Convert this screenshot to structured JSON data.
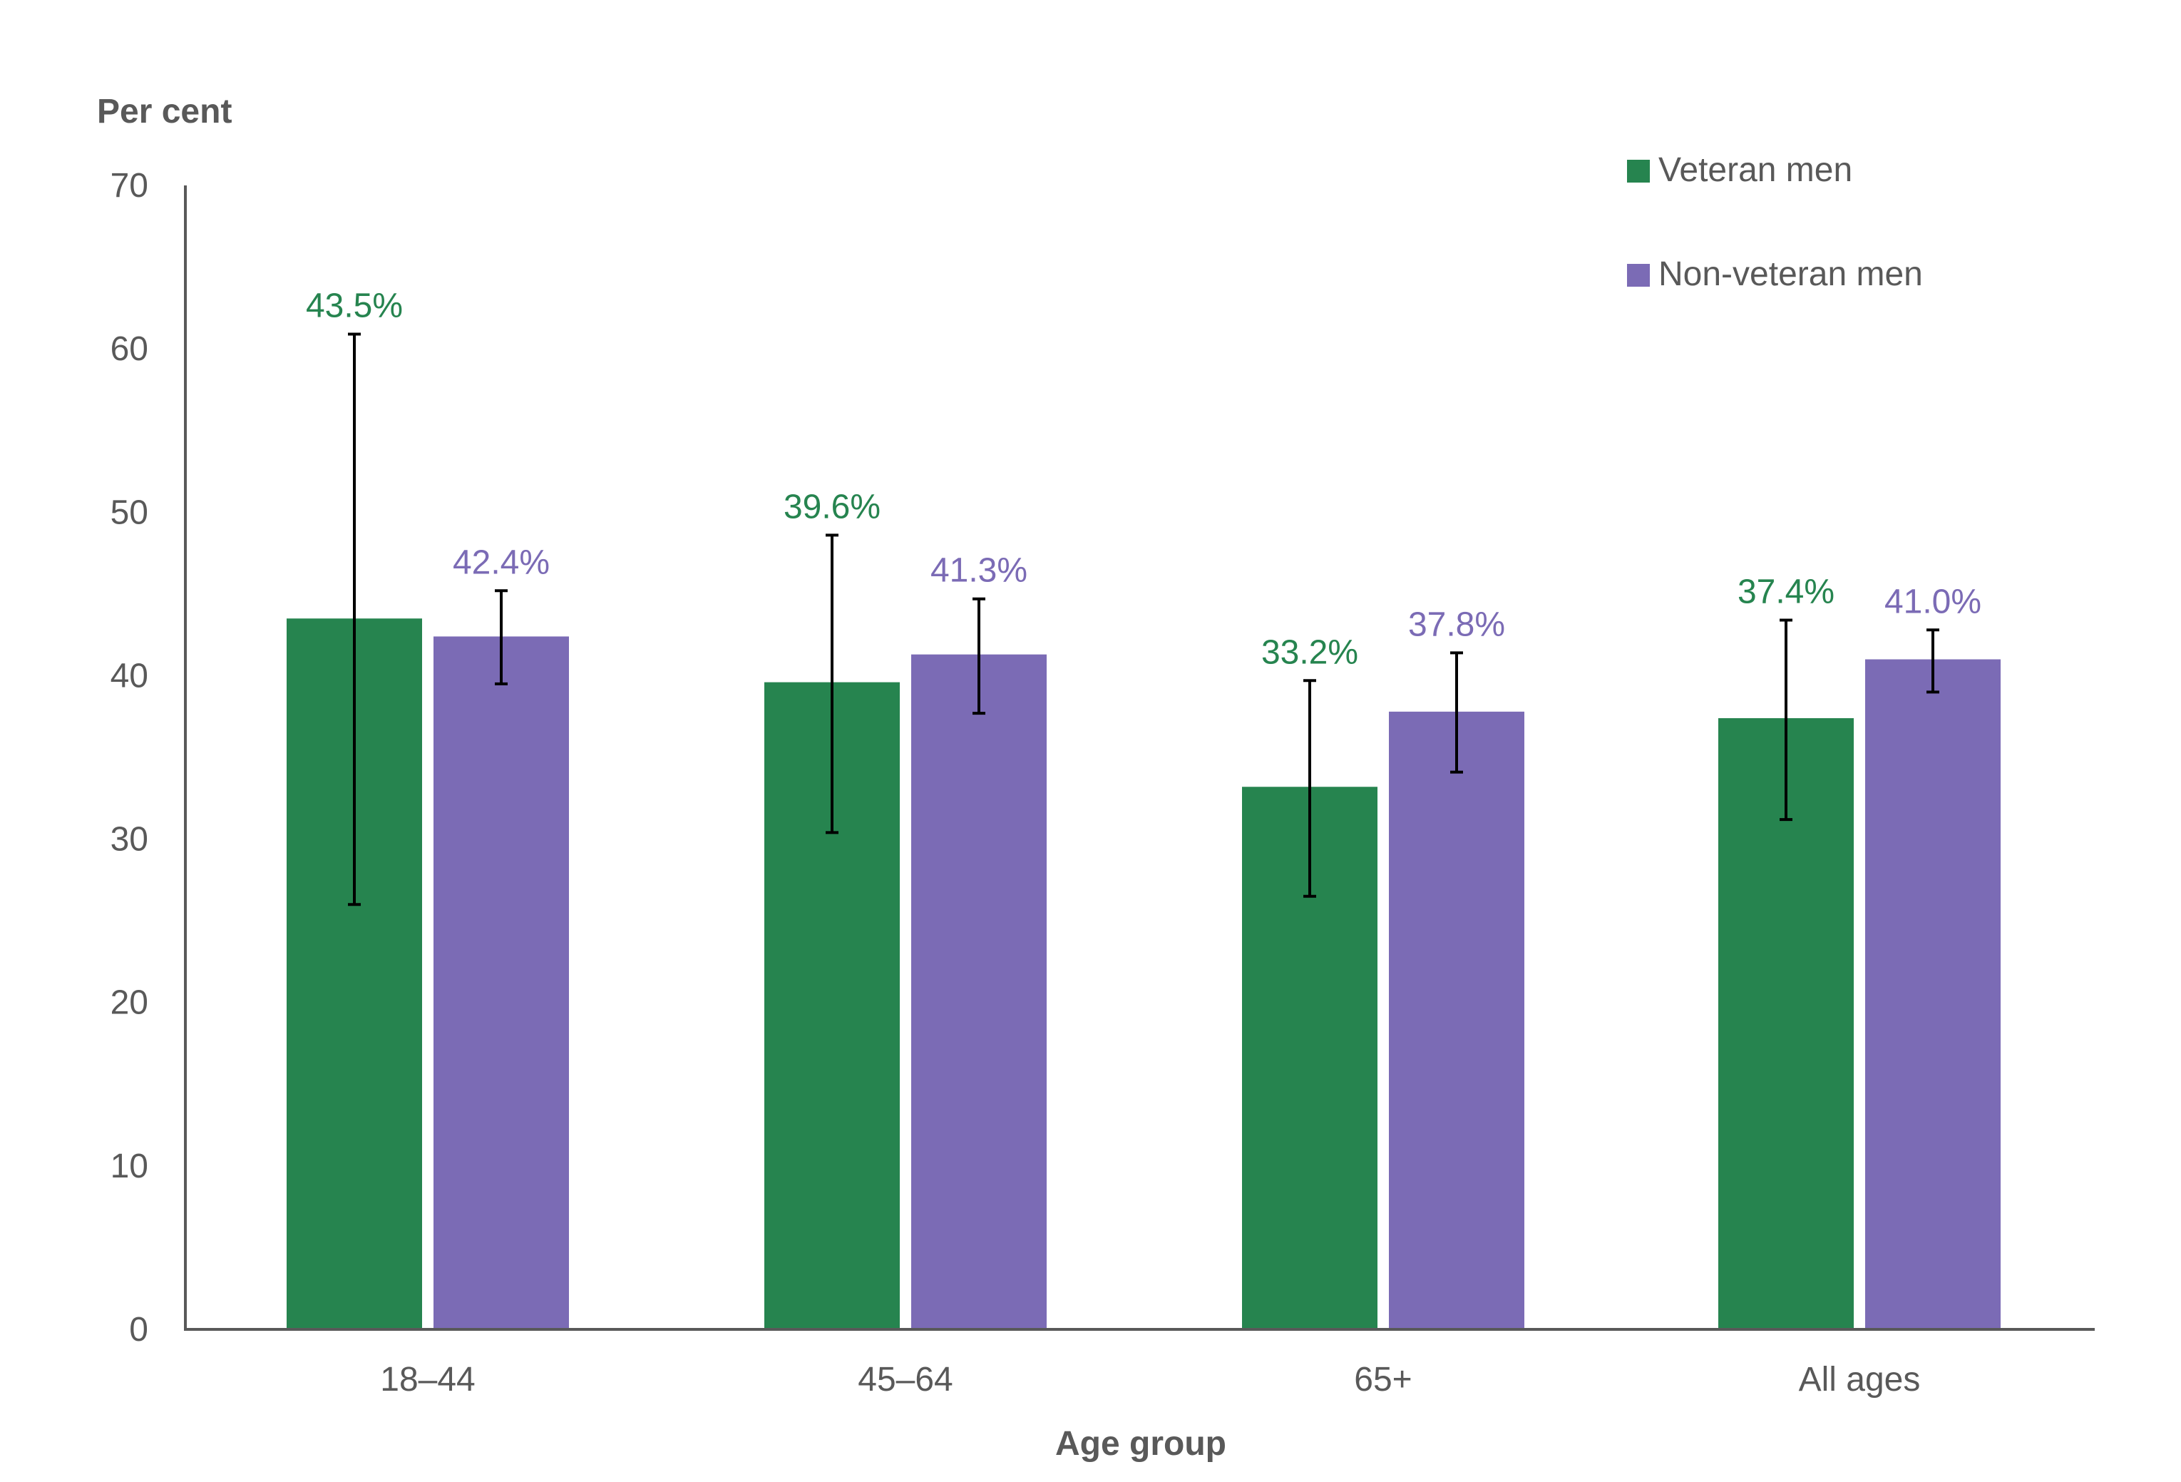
{
  "chart_data": {
    "type": "bar",
    "ylabel": "Per cent",
    "xlabel": "Age group",
    "ylim": [
      0,
      70
    ],
    "yticks": [
      "0",
      "10",
      "20",
      "30",
      "40",
      "50",
      "60",
      "70"
    ],
    "categories": [
      "18–44",
      "45–64",
      "65+",
      "All ages"
    ],
    "series": [
      {
        "name": "Veteran men",
        "color": "#26844F",
        "values": [
          43.5,
          39.6,
          33.2,
          37.4
        ],
        "labels": [
          "43.5%",
          "39.6%",
          "33.2%",
          "37.4%"
        ],
        "error_low": [
          26.0,
          30.4,
          26.5,
          31.2
        ],
        "error_high": [
          60.9,
          48.6,
          39.7,
          43.4
        ]
      },
      {
        "name": "Non-veteran men",
        "color": "#7B6BB5",
        "values": [
          42.4,
          41.3,
          37.8,
          41.0
        ],
        "labels": [
          "42.4%",
          "41.3%",
          "37.8%",
          "41.0%"
        ],
        "error_low": [
          39.5,
          37.7,
          34.1,
          39.0
        ],
        "error_high": [
          45.2,
          44.7,
          41.4,
          42.8
        ]
      }
    ],
    "legend_position": "top-right",
    "grid": false
  }
}
